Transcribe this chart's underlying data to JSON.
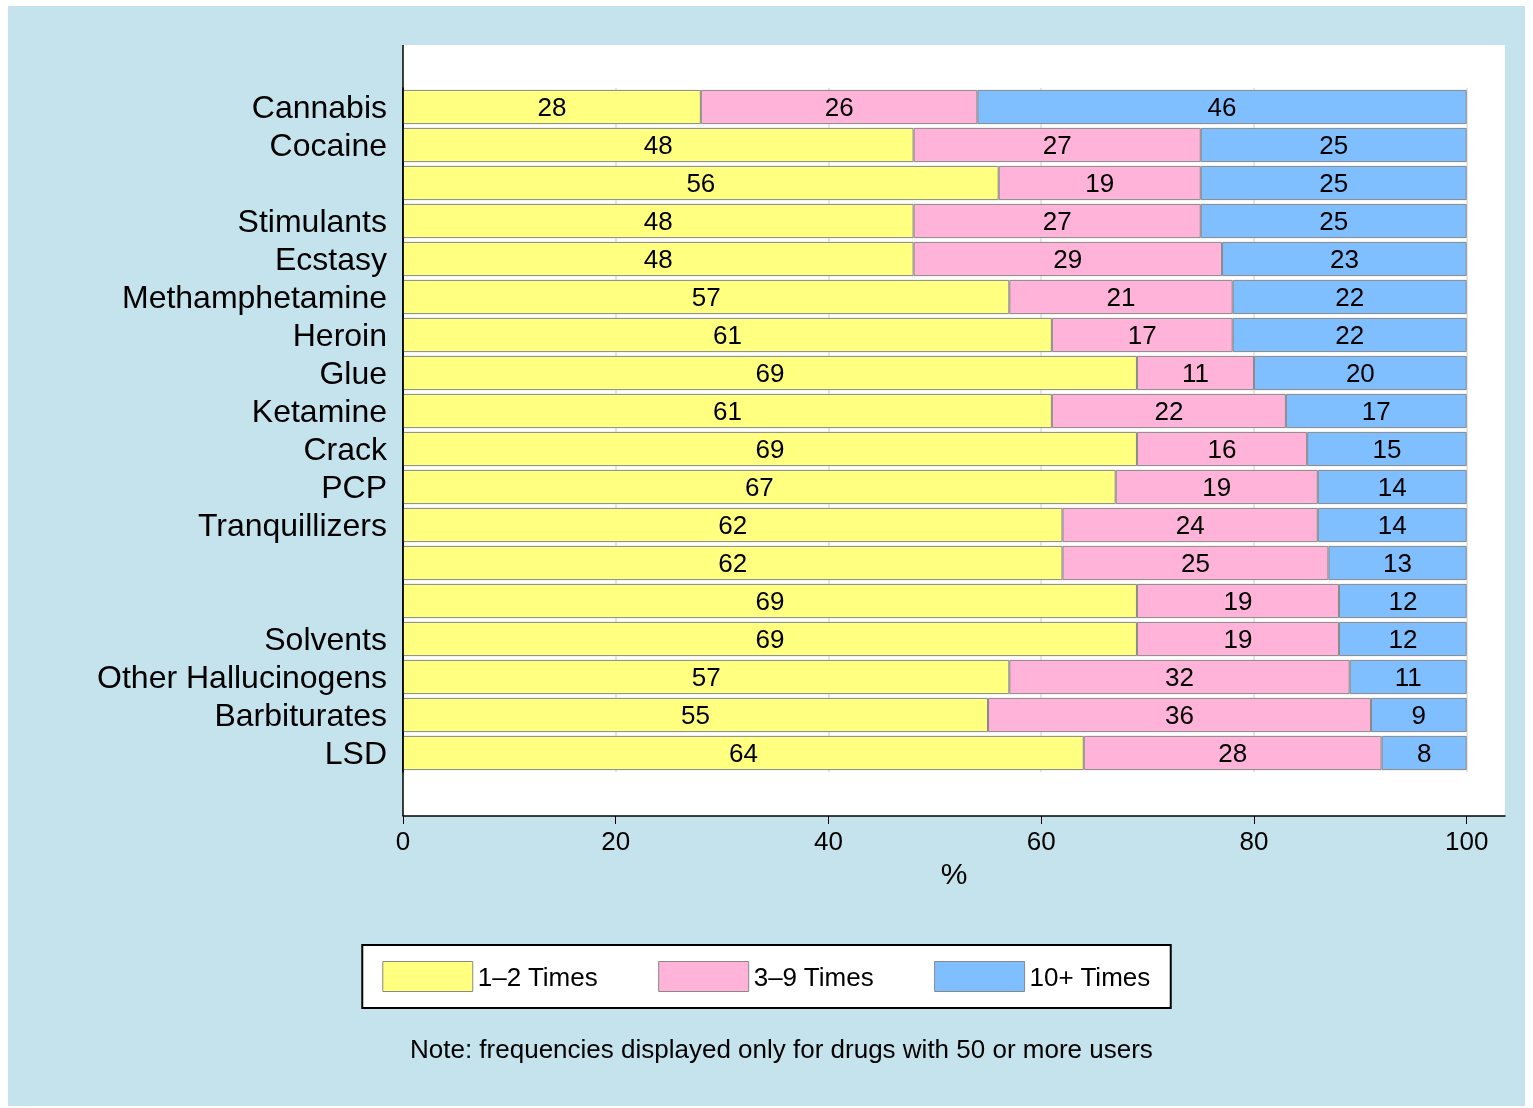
{
  "chart_data": {
    "type": "bar",
    "orientation": "horizontal",
    "stacked": true,
    "data_labels": true,
    "grid": "x",
    "legend": "bottom",
    "xlabel": "%",
    "categories": [
      "Cannabis",
      "Cocaine",
      null,
      "Stimulants",
      "Ecstasy",
      "Methamphetamine",
      "Heroin",
      "Glue",
      "Ketamine",
      "Crack",
      "PCP",
      "Tranquillizers",
      null,
      null,
      "Solvents",
      "Other Hallucinogens",
      "Barbiturates",
      "LSD"
    ],
    "series": [
      {
        "name": "1–2 Times",
        "color": "#ffff80",
        "values": [
          28,
          48,
          56,
          48,
          48,
          57,
          61,
          69,
          61,
          69,
          67,
          62,
          62,
          69,
          69,
          57,
          55,
          64
        ]
      },
      {
        "name": "3–9 Times",
        "color": "#ffb3d9",
        "values": [
          26,
          27,
          19,
          27,
          29,
          21,
          17,
          11,
          22,
          16,
          19,
          24,
          25,
          19,
          19,
          32,
          36,
          28
        ]
      },
      {
        "name": "10+ Times",
        "color": "#80bfff",
        "values": [
          46,
          25,
          25,
          25,
          23,
          22,
          22,
          20,
          17,
          15,
          14,
          14,
          13,
          12,
          12,
          11,
          9,
          8
        ]
      }
    ],
    "xlim": [
      0,
      103.6
    ],
    "xticks": [
      0,
      20,
      40,
      60,
      80,
      100
    ],
    "annotations": [
      "Note: frequencies displayed only for drugs with 50 or more users"
    ]
  }
}
